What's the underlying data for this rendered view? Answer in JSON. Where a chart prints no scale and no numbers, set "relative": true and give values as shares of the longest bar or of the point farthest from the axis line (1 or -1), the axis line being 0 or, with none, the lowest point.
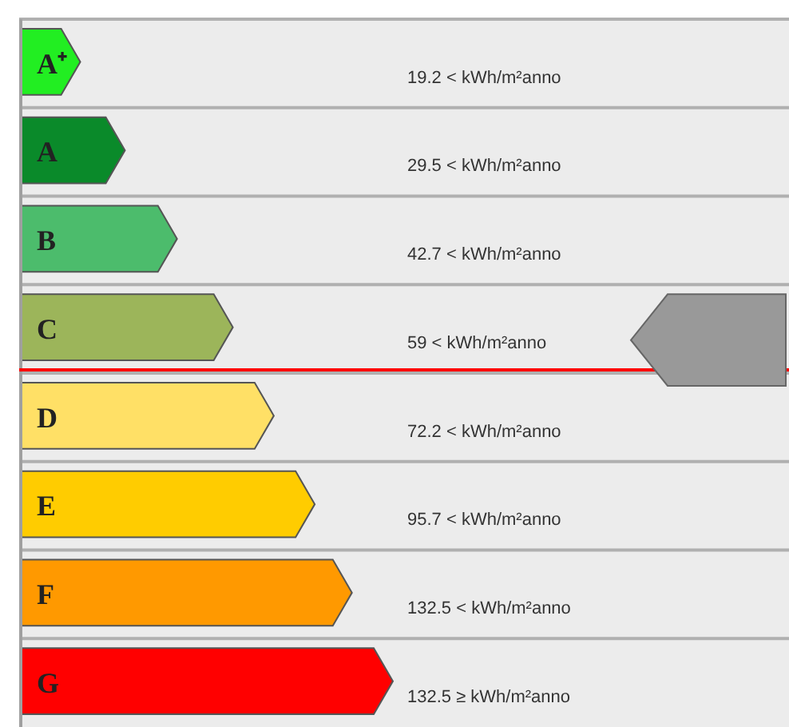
{
  "chart_data": {
    "type": "bar",
    "orientation": "horizontal",
    "relative": true,
    "categories": [
      "A⁺",
      "A",
      "B",
      "C",
      "D",
      "E",
      "F",
      "G"
    ],
    "values": [
      0.16,
      0.28,
      0.42,
      0.57,
      0.68,
      0.79,
      0.89,
      1
    ],
    "colors": [
      "#22ee22",
      "#0a8a2a",
      "#4cbc6c",
      "#9cb55a",
      "#ffe066",
      "#ffcc00",
      "#ff9900",
      "#ff0000"
    ],
    "annotations": [
      "19.2 < kWh/m²anno",
      "29.5 < kWh/m²anno",
      "42.7 < kWh/m²anno",
      "59 < kWh/m²anno",
      "72.2 < kWh/m²anno",
      "95.7 < kWh/m²anno",
      "132.5 < kWh/m²anno",
      "132.5 ≥ kWh/m²anno"
    ],
    "ref_lines": [
      {
        "axis": "y",
        "value": "C",
        "color": "#ff0000"
      }
    ]
  }
}
